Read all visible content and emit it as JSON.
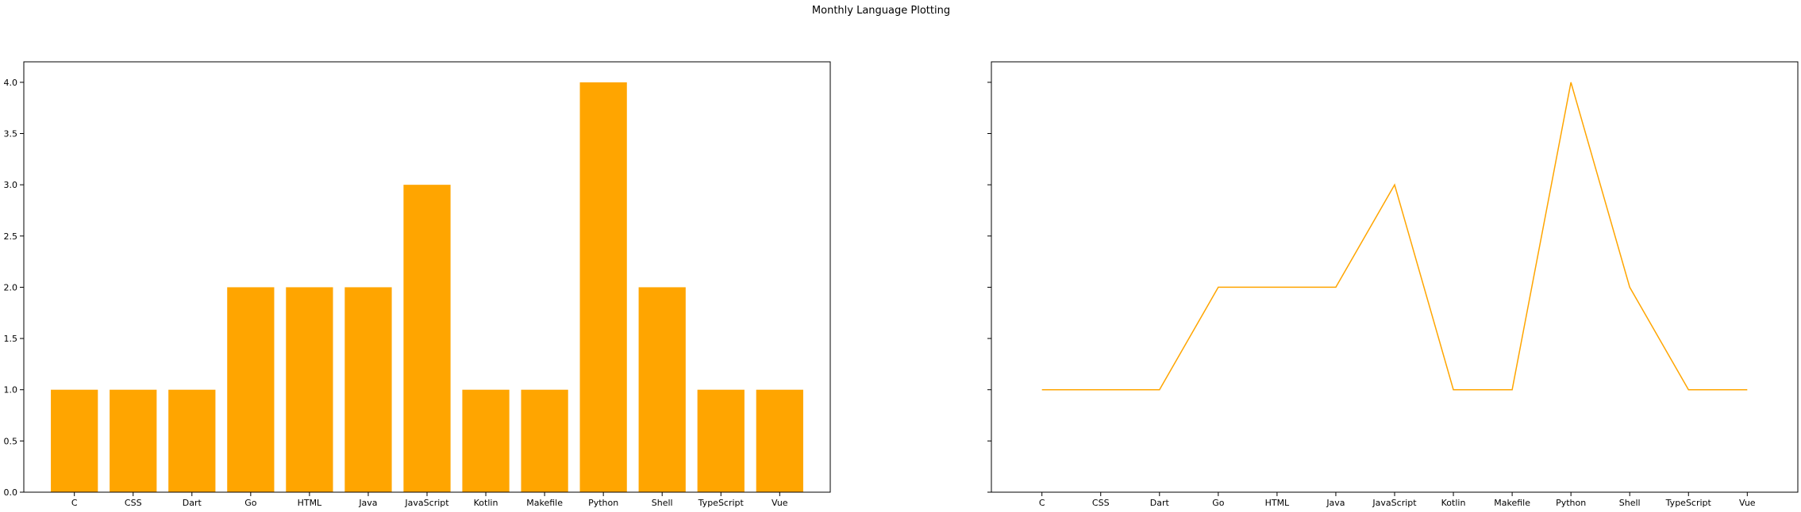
{
  "figure": {
    "title": "Monthly Language Plotting"
  },
  "chart_data": [
    {
      "type": "bar",
      "title": "",
      "xlabel": "",
      "ylabel": "",
      "categories": [
        "C",
        "CSS",
        "Dart",
        "Go",
        "HTML",
        "Java",
        "JavaScript",
        "Kotlin",
        "Makefile",
        "Python",
        "Shell",
        "TypeScript",
        "Vue"
      ],
      "values": [
        1,
        1,
        1,
        2,
        2,
        2,
        3,
        1,
        1,
        4,
        2,
        1,
        1
      ],
      "ylim": [
        0,
        4.2
      ],
      "yticks": [
        "0.0",
        "0.5",
        "1.0",
        "1.5",
        "2.0",
        "2.5",
        "3.0",
        "3.5",
        "4.0"
      ],
      "color": "#ffa500",
      "grid": false,
      "legend": "none"
    },
    {
      "type": "line",
      "title": "",
      "xlabel": "",
      "ylabel": "",
      "categories": [
        "C",
        "CSS",
        "Dart",
        "Go",
        "HTML",
        "Java",
        "JavaScript",
        "Kotlin",
        "Makefile",
        "Python",
        "Shell",
        "TypeScript",
        "Vue"
      ],
      "values": [
        1,
        1,
        1,
        2,
        2,
        2,
        3,
        1,
        1,
        4,
        2,
        1,
        1
      ],
      "ylim": [
        0,
        4.2
      ],
      "shared_y": true,
      "color": "#ffa500",
      "grid": false,
      "legend": "none"
    }
  ]
}
